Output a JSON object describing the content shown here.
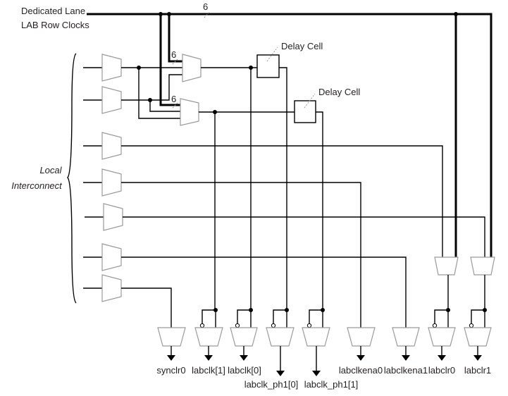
{
  "labels": {
    "dedicated_lane": "Dedicated Lane",
    "lab_row_clocks": "LAB Row Clocks",
    "bus_width_top": "6",
    "bus_width_mux1": "6",
    "bus_width_mux2": "6",
    "local": "Local",
    "interconnect": "Interconnect",
    "delay_cell_1": "Delay Cell",
    "delay_cell_2": "Delay Cell"
  },
  "outputs": [
    "synclr0",
    "labclk[1]",
    "labclk[0]",
    "labclk_ph1[0]",
    "labclk_ph1[1]",
    "labclkena0",
    "labclkena1",
    "labclr0",
    "labclr1"
  ]
}
